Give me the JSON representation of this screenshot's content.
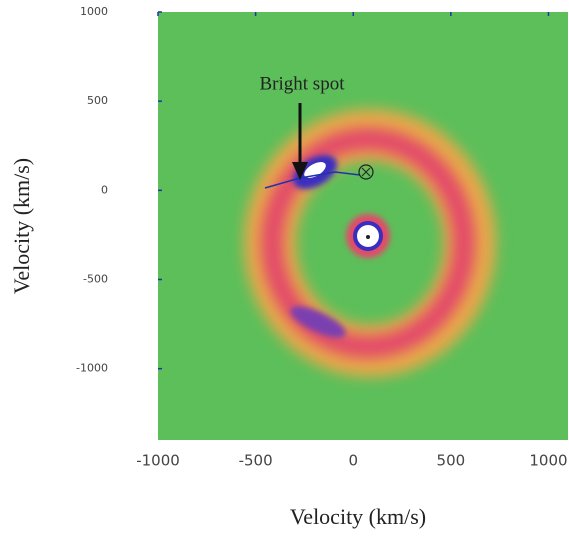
{
  "chart_data": {
    "type": "image",
    "xlabel": "Velocity (km/s)",
    "ylabel": "Velocity (km/s)",
    "annotation": "Bright spot",
    "xlim": [
      -1000,
      1100
    ],
    "xticks": [
      -1000,
      -500,
      0,
      500,
      1000
    ],
    "ylim": [
      -1400,
      1000
    ],
    "yticks": [
      1000,
      500,
      0,
      -500,
      -1000
    ],
    "background": "#5cbf5a"
  }
}
